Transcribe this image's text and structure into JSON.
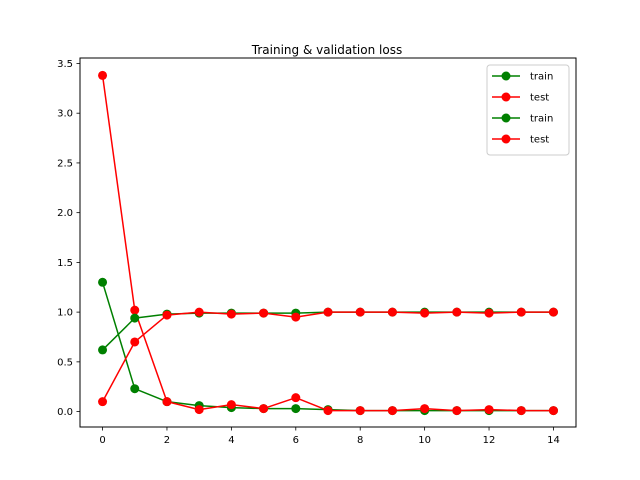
{
  "chart_data": {
    "type": "line",
    "title": "Training & validation loss",
    "xlabel": "",
    "ylabel": "",
    "xlim": [
      -0.7,
      14.7
    ],
    "ylim": [
      -0.155,
      3.555
    ],
    "xticks": [
      0,
      2,
      4,
      6,
      8,
      10,
      12,
      14
    ],
    "yticks": [
      0.0,
      0.5,
      1.0,
      1.5,
      2.0,
      2.5,
      3.0,
      3.5
    ],
    "xtick_labels": [
      "0",
      "2",
      "4",
      "6",
      "8",
      "10",
      "12",
      "14"
    ],
    "ytick_labels": [
      "0.0",
      "0.5",
      "1.0",
      "1.5",
      "2.0",
      "2.5",
      "3.0",
      "3.5"
    ],
    "grid": false,
    "legend_position": "top-right",
    "x": [
      0,
      1,
      2,
      3,
      4,
      5,
      6,
      7,
      8,
      9,
      10,
      11,
      12,
      13,
      14
    ],
    "series": [
      {
        "name": "train",
        "color": "#008000",
        "marker": "circle",
        "values": [
          1.3,
          0.23,
          0.1,
          0.06,
          0.04,
          0.03,
          0.03,
          0.02,
          0.01,
          0.01,
          0.01,
          0.01,
          0.01,
          0.01,
          0.01
        ]
      },
      {
        "name": "test",
        "color": "#ff0000",
        "marker": "circle",
        "values": [
          3.38,
          1.02,
          0.1,
          0.02,
          0.07,
          0.03,
          0.14,
          0.01,
          0.01,
          0.01,
          0.03,
          0.01,
          0.02,
          0.01,
          0.01
        ]
      },
      {
        "name": "train",
        "color": "#008000",
        "marker": "circle",
        "values": [
          0.62,
          0.94,
          0.98,
          0.99,
          0.99,
          0.99,
          0.99,
          1.0,
          1.0,
          1.0,
          1.0,
          1.0,
          1.0,
          1.0,
          1.0
        ]
      },
      {
        "name": "test",
        "color": "#ff0000",
        "marker": "circle",
        "values": [
          0.1,
          0.7,
          0.97,
          1.0,
          0.98,
          0.99,
          0.95,
          1.0,
          1.0,
          1.0,
          0.99,
          1.0,
          0.99,
          1.0,
          1.0
        ]
      }
    ]
  }
}
